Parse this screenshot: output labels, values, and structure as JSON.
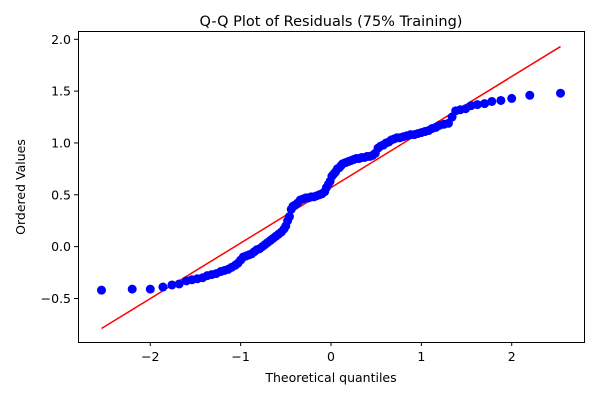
{
  "chart_data": {
    "type": "scatter",
    "title": "Q-Q Plot of Residuals (75% Training)",
    "xlabel": "Theoretical quantiles",
    "ylabel": "Ordered Values",
    "xlim": [
      -2.8,
      2.8
    ],
    "ylim": [
      -0.92,
      2.08
    ],
    "xticks": [
      -2,
      -1,
      0,
      1,
      2
    ],
    "xtick_labels": [
      "−2",
      "−1",
      "0",
      "1",
      "2"
    ],
    "yticks": [
      -0.5,
      0.0,
      0.5,
      1.0,
      1.5,
      2.0
    ],
    "ytick_labels": [
      "−0.5",
      "0.0",
      "0.5",
      "1.0",
      "1.5",
      "2.0"
    ],
    "grid": false,
    "colors": {
      "points": "#0000ff",
      "fit_line": "#ff0000"
    },
    "fit_line": {
      "x": [
        -2.54,
        2.54
      ],
      "y": [
        -0.79,
        1.93
      ]
    },
    "points": [
      [
        -2.54,
        -0.42
      ],
      [
        -2.2,
        -0.41
      ],
      [
        -2.0,
        -0.41
      ],
      [
        -1.86,
        -0.39
      ],
      [
        -1.76,
        -0.37
      ],
      [
        -1.68,
        -0.36
      ],
      [
        -1.6,
        -0.33
      ],
      [
        -1.54,
        -0.32
      ],
      [
        -1.48,
        -0.31
      ],
      [
        -1.42,
        -0.3
      ],
      [
        -1.37,
        -0.28
      ],
      [
        -1.32,
        -0.27
      ],
      [
        -1.27,
        -0.26
      ],
      [
        -1.22,
        -0.24
      ],
      [
        -1.18,
        -0.23
      ],
      [
        -1.14,
        -0.22
      ],
      [
        -1.1,
        -0.2
      ],
      [
        -1.06,
        -0.18
      ],
      [
        -1.03,
        -0.16
      ],
      [
        -1.0,
        -0.13
      ],
      [
        -0.97,
        -0.1
      ],
      [
        -0.94,
        -0.09
      ],
      [
        -0.91,
        -0.08
      ],
      [
        -0.88,
        -0.07
      ],
      [
        -0.85,
        -0.05
      ],
      [
        -0.82,
        -0.03
      ],
      [
        -0.79,
        -0.02
      ],
      [
        -0.76,
        0.0
      ],
      [
        -0.73,
        0.02
      ],
      [
        -0.7,
        0.04
      ],
      [
        -0.67,
        0.06
      ],
      [
        -0.64,
        0.08
      ],
      [
        -0.61,
        0.1
      ],
      [
        -0.58,
        0.12
      ],
      [
        -0.55,
        0.14
      ],
      [
        -0.52,
        0.17
      ],
      [
        -0.5,
        0.2
      ],
      [
        -0.48,
        0.25
      ],
      [
        -0.46,
        0.29
      ],
      [
        -0.44,
        0.36
      ],
      [
        -0.42,
        0.39
      ],
      [
        -0.4,
        0.4
      ],
      [
        -0.37,
        0.42
      ],
      [
        -0.34,
        0.45
      ],
      [
        -0.31,
        0.46
      ],
      [
        -0.28,
        0.47
      ],
      [
        -0.25,
        0.47
      ],
      [
        -0.22,
        0.48
      ],
      [
        -0.19,
        0.48
      ],
      [
        -0.16,
        0.49
      ],
      [
        -0.13,
        0.5
      ],
      [
        -0.1,
        0.51
      ],
      [
        -0.07,
        0.53
      ],
      [
        -0.05,
        0.57
      ],
      [
        -0.03,
        0.6
      ],
      [
        -0.01,
        0.63
      ],
      [
        0.01,
        0.68
      ],
      [
        0.03,
        0.7
      ],
      [
        0.05,
        0.72
      ],
      [
        0.07,
        0.75
      ],
      [
        0.09,
        0.76
      ],
      [
        0.11,
        0.78
      ],
      [
        0.13,
        0.8
      ],
      [
        0.16,
        0.81
      ],
      [
        0.19,
        0.82
      ],
      [
        0.22,
        0.83
      ],
      [
        0.25,
        0.84
      ],
      [
        0.28,
        0.85
      ],
      [
        0.31,
        0.85
      ],
      [
        0.34,
        0.86
      ],
      [
        0.37,
        0.86
      ],
      [
        0.4,
        0.87
      ],
      [
        0.43,
        0.87
      ],
      [
        0.46,
        0.88
      ],
      [
        0.49,
        0.9
      ],
      [
        0.52,
        0.95
      ],
      [
        0.55,
        0.97
      ],
      [
        0.58,
        0.98
      ],
      [
        0.61,
        1.0
      ],
      [
        0.64,
        1.01
      ],
      [
        0.67,
        1.03
      ],
      [
        0.7,
        1.04
      ],
      [
        0.73,
        1.05
      ],
      [
        0.76,
        1.05
      ],
      [
        0.8,
        1.06
      ],
      [
        0.84,
        1.07
      ],
      [
        0.88,
        1.08
      ],
      [
        0.92,
        1.08
      ],
      [
        0.96,
        1.09
      ],
      [
        1.0,
        1.1
      ],
      [
        1.04,
        1.11
      ],
      [
        1.08,
        1.12
      ],
      [
        1.12,
        1.14
      ],
      [
        1.16,
        1.15
      ],
      [
        1.2,
        1.17
      ],
      [
        1.25,
        1.18
      ],
      [
        1.3,
        1.19
      ],
      [
        1.34,
        1.25
      ],
      [
        1.38,
        1.31
      ],
      [
        1.43,
        1.32
      ],
      [
        1.49,
        1.33
      ],
      [
        1.55,
        1.36
      ],
      [
        1.62,
        1.37
      ],
      [
        1.7,
        1.38
      ],
      [
        1.78,
        1.4
      ],
      [
        1.88,
        1.41
      ],
      [
        2.0,
        1.43
      ],
      [
        2.2,
        1.46
      ],
      [
        2.54,
        1.48
      ]
    ]
  }
}
